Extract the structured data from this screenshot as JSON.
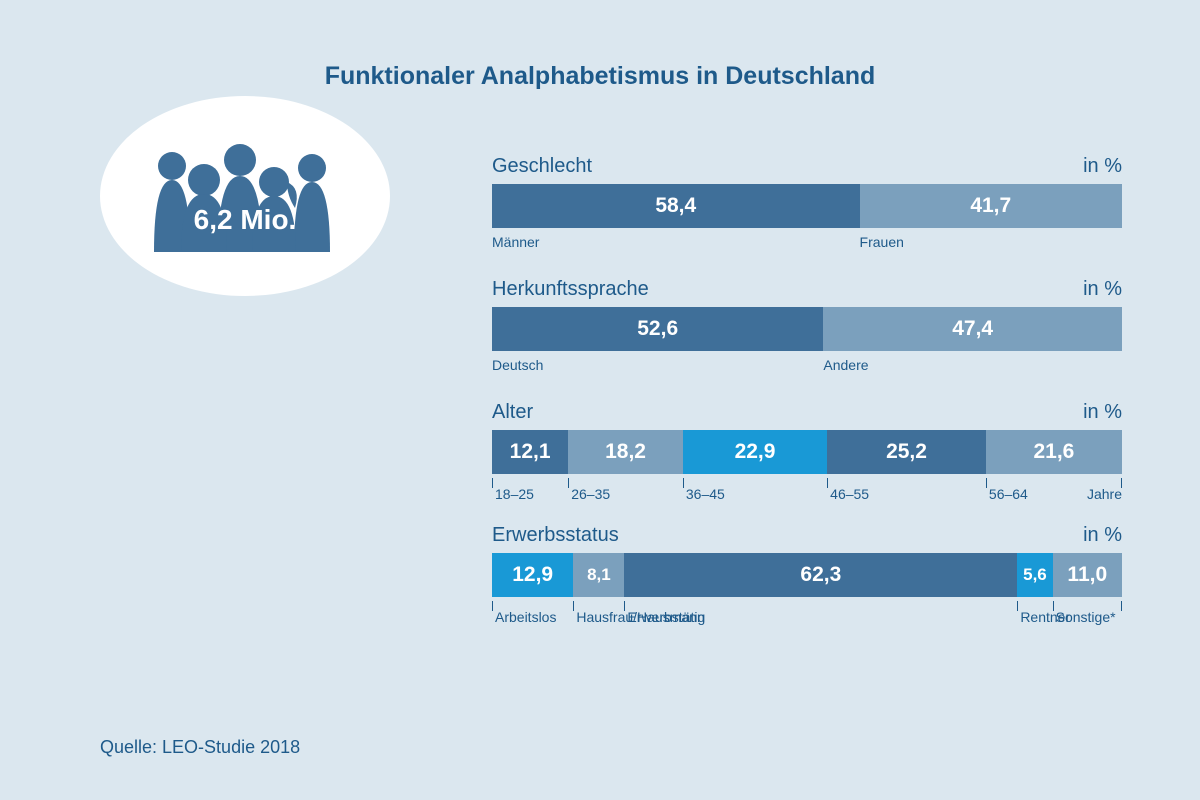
{
  "title": "Funktionaler Analphabetismus in Deutschland",
  "totalFigure": "6,2 Mio.",
  "unitLabel": "in %",
  "palette": {
    "darkBlue": "#3f6f99",
    "midBlue": "#7ba0bd",
    "brightBlue": "#1999d6",
    "background": "#dbe7ef",
    "ellipse": "#ffffff",
    "text": "#1e5a8a"
  },
  "peopleFill": "#3f6f99",
  "charts": [
    {
      "title": "Geschlecht",
      "segments": [
        {
          "value": 58.4,
          "label": "58,4",
          "color": "#3f6f99",
          "catLabel": "Männer"
        },
        {
          "value": 41.7,
          "label": "41,7",
          "color": "#7ba0bd",
          "catLabel": "Frauen"
        }
      ],
      "labelMode": "segmentStart"
    },
    {
      "title": "Herkunftssprache",
      "segments": [
        {
          "value": 52.6,
          "label": "52,6",
          "color": "#3f6f99",
          "catLabel": "Deutsch"
        },
        {
          "value": 47.4,
          "label": "47,4",
          "color": "#7ba0bd",
          "catLabel": "Andere"
        }
      ],
      "labelMode": "segmentStart"
    },
    {
      "title": "Alter",
      "extraRight": "Jahre",
      "segments": [
        {
          "value": 12.1,
          "label": "12,1",
          "color": "#3f6f99",
          "catLabel": "18–25"
        },
        {
          "value": 18.2,
          "label": "18,2",
          "color": "#7ba0bd",
          "catLabel": "26–35"
        },
        {
          "value": 22.9,
          "label": "22,9",
          "color": "#1999d6",
          "catLabel": "36–45"
        },
        {
          "value": 25.2,
          "label": "25,2",
          "color": "#3f6f99",
          "catLabel": "46–55"
        },
        {
          "value": 21.6,
          "label": "21,6",
          "color": "#7ba0bd",
          "catLabel": "56–64"
        }
      ],
      "labelMode": "ticks"
    },
    {
      "title": "Erwerbsstatus",
      "segments": [
        {
          "value": 12.9,
          "label": "12,9",
          "color": "#1999d6",
          "catLabel": "Arbeitslos"
        },
        {
          "value": 8.1,
          "label": "8,1",
          "color": "#7ba0bd",
          "catLabel": "Hausfrau/Hausmann"
        },
        {
          "value": 62.3,
          "label": "62,3",
          "color": "#3f6f99",
          "catLabel": "Erwerbstätig"
        },
        {
          "value": 5.6,
          "label": "5,6",
          "color": "#1999d6",
          "catLabel": "Rentner"
        },
        {
          "value": 11.0,
          "label": "11,0",
          "color": "#7ba0bd",
          "catLabel": "Sonstige*"
        }
      ],
      "labelMode": "ticks"
    }
  ],
  "source": "Quelle: LEO-Studie 2018"
}
